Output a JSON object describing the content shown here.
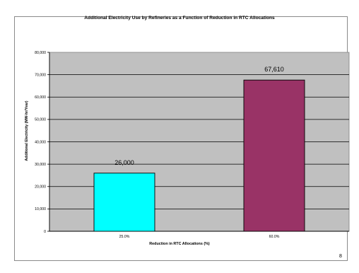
{
  "chart_data": {
    "type": "bar",
    "title": "Additional Electricity Use by Refineries as a Function of Reduction in RTC Allocations",
    "xlabel": "Reduction in RTC Allocations (%)",
    "ylabel": "Additional Electricity (MW-hr/Year)",
    "categories": [
      "25.0%",
      "60.0%"
    ],
    "values": [
      26000,
      67610
    ],
    "value_labels": [
      "26,000",
      "67,610"
    ],
    "colors": [
      "#00ffff",
      "#993366"
    ],
    "ylim": [
      0,
      80000
    ],
    "yticks": [
      "0",
      "10,000",
      "20,000",
      "30,000",
      "40,000",
      "50,000",
      "60,000",
      "70,000",
      "80,000"
    ],
    "grid": true,
    "plot_background": "#c0c0c0",
    "legend": "none"
  },
  "page": {
    "number": "8"
  }
}
